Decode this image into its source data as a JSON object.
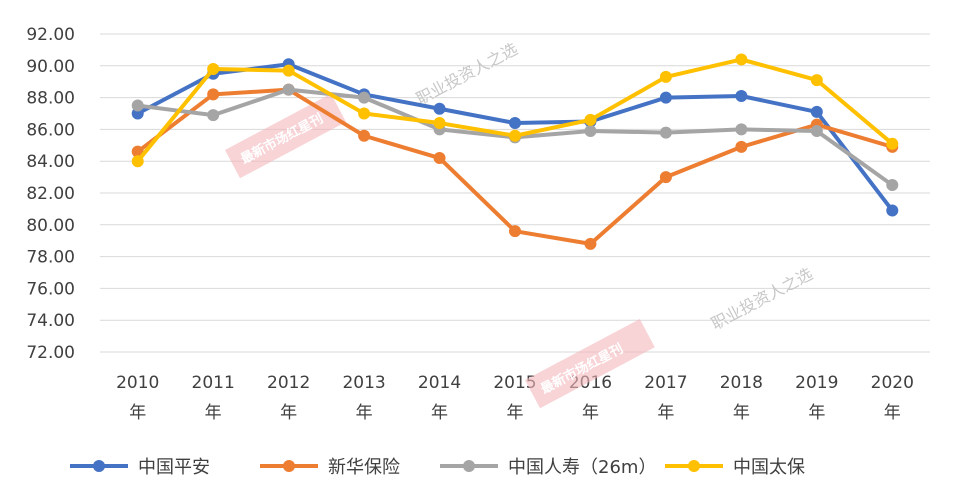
{
  "chart_data": {
    "type": "line",
    "title": "",
    "xlabel": "",
    "ylabel": "",
    "ylim": [
      72,
      92
    ],
    "y_ticks": [
      "92.00",
      "90.00",
      "88.00",
      "86.00",
      "84.00",
      "82.00",
      "80.00",
      "78.00",
      "76.00",
      "74.00",
      "72.00"
    ],
    "y_tick_values": [
      92,
      90,
      88,
      86,
      84,
      82,
      80,
      78,
      76,
      74,
      72
    ],
    "categories": [
      [
        "2010",
        "年"
      ],
      [
        "2011",
        "年"
      ],
      [
        "2012",
        "年"
      ],
      [
        "2013",
        "年"
      ],
      [
        "2014",
        "年"
      ],
      [
        "2015",
        "年"
      ],
      [
        "2016",
        "年"
      ],
      [
        "2017",
        "年"
      ],
      [
        "2018",
        "年"
      ],
      [
        "2019",
        "年"
      ],
      [
        "2020",
        "年"
      ]
    ],
    "grid": true,
    "legend_position": "bottom",
    "series": [
      {
        "name": "中国平安",
        "color": "#4472C4",
        "values": [
          87.0,
          89.5,
          90.1,
          88.2,
          87.3,
          86.4,
          86.5,
          88.0,
          88.1,
          87.1,
          80.9
        ]
      },
      {
        "name": "新华保险",
        "color": "#ED7D31",
        "values": [
          84.6,
          88.2,
          88.5,
          85.6,
          84.2,
          79.6,
          78.8,
          83.0,
          84.9,
          86.3,
          84.9
        ]
      },
      {
        "name": "中国人寿（26m）",
        "color": "#A5A5A5",
        "values": [
          87.5,
          86.9,
          88.5,
          88.0,
          86.0,
          85.5,
          85.9,
          85.8,
          86.0,
          85.9,
          82.5
        ]
      },
      {
        "name": "中国太保",
        "color": "#FFC000",
        "values": [
          84.0,
          89.8,
          89.7,
          87.0,
          86.4,
          85.6,
          86.6,
          89.3,
          90.4,
          89.1,
          85.1
        ]
      }
    ]
  },
  "watermarks": [
    {
      "text": "职业投资人之选",
      "badge": "最新市场红星刊"
    },
    {
      "text": "职业投资人之选",
      "badge": "最新市场红星刊"
    }
  ]
}
